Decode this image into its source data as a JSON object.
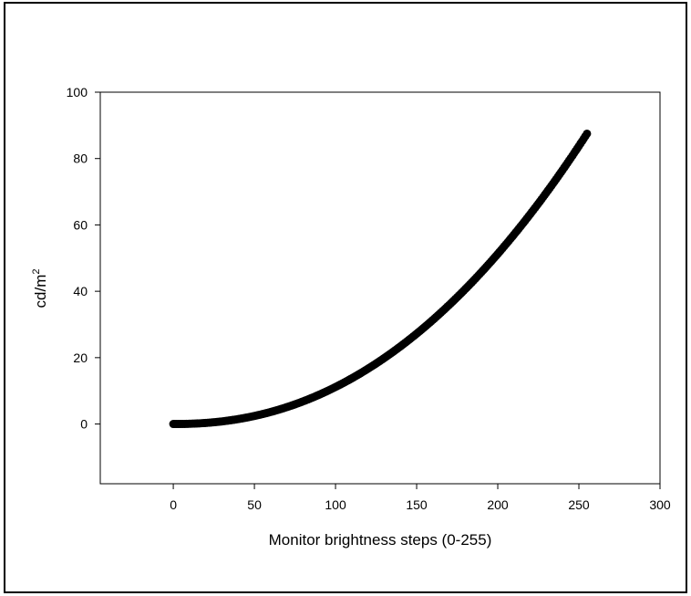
{
  "chart_data": {
    "type": "scatter",
    "title": "",
    "xlabel": "Monitor brightness steps (0-255)",
    "ylabel": "cd/m",
    "ylabel_superscript": "2",
    "xlim": [
      -45,
      300
    ],
    "ylim": [
      -18,
      100
    ],
    "xticks": [
      0,
      50,
      100,
      150,
      200,
      250,
      300
    ],
    "yticks": [
      0,
      20,
      40,
      60,
      80,
      100
    ],
    "grid": false,
    "marker_color": "#000000",
    "curve": {
      "description_of_model": "power",
      "x_start": 0,
      "x_end": 255,
      "y_at_start": 0,
      "y_at_end": 87.5,
      "exponent": 2.2
    }
  }
}
